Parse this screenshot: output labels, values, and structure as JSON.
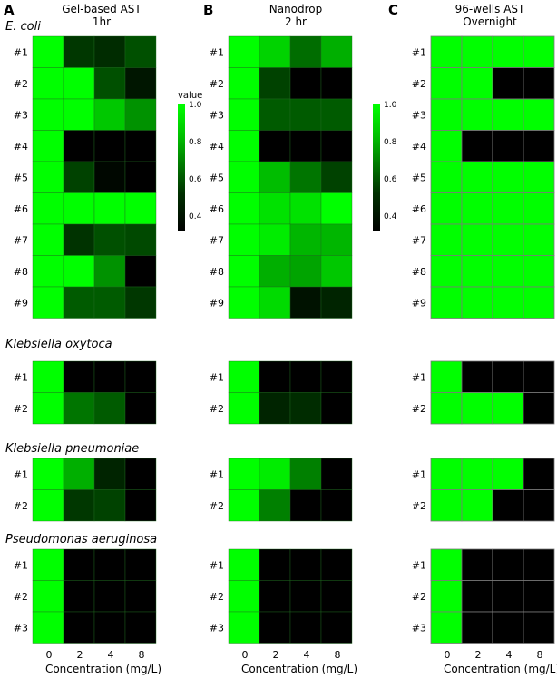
{
  "chart_data": {
    "type": "heatmap",
    "colorscale": {
      "title": "value",
      "min_color": "#000000",
      "max_color": "#00ff00",
      "ticks": [
        "1.0",
        "0.8",
        "0.6",
        "0.4"
      ],
      "range": [
        0.3,
        1.0
      ]
    },
    "x_tick_labels": [
      "0",
      "2",
      "4",
      "8"
    ],
    "xlabel": "Concentration (mg/L)",
    "panels": [
      {
        "letter": "A",
        "title": [
          "Gel-based AST",
          "1hr"
        ]
      },
      {
        "letter": "B",
        "title": [
          "Nanodrop",
          "2 hr"
        ]
      },
      {
        "letter": "C",
        "title": [
          "96-wells AST",
          "Overnight"
        ]
      }
    ],
    "groups": [
      {
        "species": "E. coli",
        "rows": [
          "#1",
          "#2",
          "#3",
          "#4",
          "#5",
          "#6",
          "#7",
          "#8",
          "#9"
        ],
        "values": [
          [
            [
              1.0,
              0.45,
              0.42,
              0.52
            ],
            [
              1.0,
              1.0,
              0.52,
              0.36
            ],
            [
              1.0,
              1.0,
              0.85,
              0.7
            ],
            [
              1.0,
              0.25,
              0.3,
              0.28
            ],
            [
              1.0,
              0.48,
              0.32,
              0.28
            ],
            [
              1.0,
              1.0,
              1.0,
              1.0
            ],
            [
              1.0,
              0.44,
              0.52,
              0.5
            ],
            [
              1.0,
              1.0,
              0.7,
              0.2
            ],
            [
              1.0,
              0.55,
              0.55,
              0.45
            ]
          ],
          [
            [
              1.0,
              0.88,
              0.6,
              0.78
            ],
            [
              1.0,
              0.48,
              0.22,
              0.22
            ],
            [
              1.0,
              0.55,
              0.55,
              0.55
            ],
            [
              1.0,
              0.22,
              0.22,
              0.22
            ],
            [
              1.0,
              0.82,
              0.62,
              0.48
            ],
            [
              1.0,
              0.92,
              0.92,
              1.0
            ],
            [
              1.0,
              0.95,
              0.8,
              0.8
            ],
            [
              1.0,
              0.78,
              0.75,
              0.85
            ],
            [
              1.0,
              0.9,
              0.35,
              0.4
            ]
          ],
          [
            [
              1.0,
              1.0,
              1.0,
              1.0
            ],
            [
              1.0,
              1.0,
              0.0,
              0.0
            ],
            [
              1.0,
              1.0,
              1.0,
              1.0
            ],
            [
              1.0,
              0.0,
              0.0,
              0.0
            ],
            [
              1.0,
              1.0,
              1.0,
              1.0
            ],
            [
              1.0,
              1.0,
              1.0,
              1.0
            ],
            [
              1.0,
              1.0,
              1.0,
              1.0
            ],
            [
              1.0,
              1.0,
              1.0,
              1.0
            ],
            [
              1.0,
              1.0,
              1.0,
              1.0
            ]
          ]
        ]
      },
      {
        "species": "Klebsiella oxytoca",
        "rows": [
          "#1",
          "#2"
        ],
        "values": [
          [
            [
              1.0,
              0.0,
              0.0,
              0.0
            ],
            [
              1.0,
              0.62,
              0.55,
              0.2
            ]
          ],
          [
            [
              1.0,
              0.0,
              0.0,
              0.0
            ],
            [
              1.0,
              0.4,
              0.42,
              0.15
            ]
          ],
          [
            [
              1.0,
              0.0,
              0.0,
              0.0
            ],
            [
              1.0,
              1.0,
              1.0,
              0.0
            ]
          ]
        ]
      },
      {
        "species": "Klebsiella pneumoniae",
        "rows": [
          "#1",
          "#2"
        ],
        "values": [
          [
            [
              1.0,
              0.78,
              0.4,
              0.25
            ],
            [
              1.0,
              0.45,
              0.48,
              0.22
            ]
          ],
          [
            [
              1.0,
              0.95,
              0.65,
              0.05
            ],
            [
              1.0,
              0.65,
              0.3,
              0.1
            ]
          ],
          [
            [
              1.0,
              1.0,
              1.0,
              0.0
            ],
            [
              1.0,
              1.0,
              0.0,
              0.0
            ]
          ]
        ]
      },
      {
        "species": "Pseudomonas aeruginosa",
        "rows": [
          "#1",
          "#2",
          "#3"
        ],
        "values": [
          [
            [
              1.0,
              0.0,
              0.0,
              0.0
            ],
            [
              1.0,
              0.0,
              0.0,
              0.0
            ],
            [
              1.0,
              0.0,
              0.0,
              0.0
            ]
          ],
          [
            [
              1.0,
              0.0,
              0.0,
              0.0
            ],
            [
              1.0,
              0.0,
              0.0,
              0.0
            ],
            [
              1.0,
              0.0,
              0.0,
              0.0
            ]
          ],
          [
            [
              1.0,
              0.0,
              0.0,
              0.0
            ],
            [
              1.0,
              0.0,
              0.0,
              0.0
            ],
            [
              1.0,
              0.0,
              0.0,
              0.0
            ]
          ]
        ]
      }
    ]
  }
}
